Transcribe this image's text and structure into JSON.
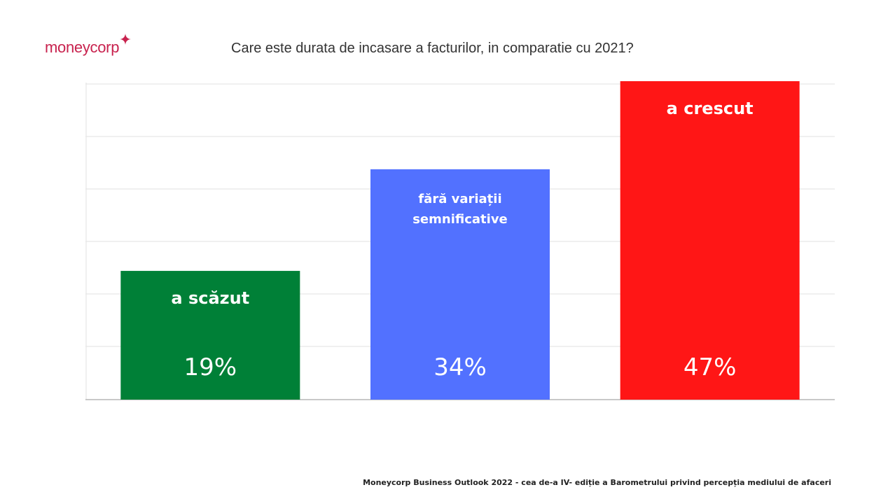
{
  "brand": {
    "logo_text": "moneycorp",
    "accent_color": "#c8224e",
    "logo_icon": "sparkle-star-icon"
  },
  "chart_data": {
    "type": "bar",
    "title": "Care este durata de incasare a facturilor, in comparatie cu 2021?",
    "categories": [
      "a scăzut",
      "fără variații semnificative",
      "a crescut"
    ],
    "category_lines": [
      [
        "a scăzut"
      ],
      [
        "fără variații",
        "semnificative"
      ],
      [
        "a crescut"
      ]
    ],
    "values": [
      19,
      34,
      47
    ],
    "value_labels": [
      "19%",
      "34%",
      "47%"
    ],
    "colors": [
      "#008037",
      "#5271ff",
      "#ff1616"
    ],
    "ylim": [
      0,
      47
    ],
    "grid": true,
    "legend": "none"
  },
  "footer": {
    "text": "Moneycorp Business Outlook 2022 - cea de-a IV- ediție a Barometrului privind percepția mediului de afaceri"
  }
}
